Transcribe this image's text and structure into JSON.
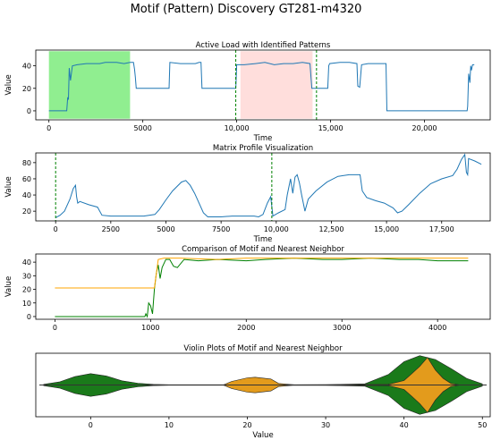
{
  "figure": {
    "suptitle": "Motif (Pattern) Discovery GT281-m4320"
  },
  "chart_data": [
    {
      "type": "line",
      "title": "Active Load with Identified Patterns",
      "xlabel": "Time",
      "ylabel": "Value",
      "xlim": [
        -700,
        23500
      ],
      "ylim": [
        -8,
        54
      ],
      "xticks": [
        0,
        5000,
        10000,
        15000,
        20000
      ],
      "xtick_labels": [
        "0",
        "5000",
        "10,000",
        "15,000",
        "20,000"
      ],
      "yticks": [
        0,
        20,
        40
      ],
      "ytick_labels": [
        "0",
        "20",
        "40"
      ],
      "colors": {
        "line": "#1f77b4",
        "motif_box": "#90ee90",
        "neighbor_box": "#ffdedc",
        "marker": "#008000"
      },
      "highlight_regions": [
        {
          "name": "motif",
          "x": [
            0,
            4320
          ],
          "y": [
            -7,
            53
          ]
        },
        {
          "name": "nearest-neighbor",
          "x": [
            10200,
            14040
          ],
          "y": [
            -7,
            53
          ]
        }
      ],
      "vlines": [
        9950,
        14250
      ],
      "series": [
        {
          "values": [
            [
              0,
              0
            ],
            [
              950,
              0
            ],
            [
              1000,
              12
            ],
            [
              1040,
              10
            ],
            [
              1080,
              38
            ],
            [
              1150,
              27
            ],
            [
              1250,
              40
            ],
            [
              1500,
              41
            ],
            [
              2000,
              42
            ],
            [
              2700,
              42
            ],
            [
              3000,
              43
            ],
            [
              3600,
              43
            ],
            [
              4000,
              42
            ],
            [
              4320,
              43
            ],
            [
              4500,
              43
            ],
            [
              4560,
              37
            ],
            [
              4600,
              30
            ],
            [
              4650,
              20
            ],
            [
              5500,
              20
            ],
            [
              6400,
              20
            ],
            [
              6440,
              43
            ],
            [
              7000,
              42
            ],
            [
              7800,
              42
            ],
            [
              8000,
              43
            ],
            [
              8100,
              43
            ],
            [
              8150,
              20
            ],
            [
              9000,
              20
            ],
            [
              9950,
              20
            ],
            [
              10000,
              41
            ],
            [
              10400,
              41
            ],
            [
              11000,
              42
            ],
            [
              11500,
              43
            ],
            [
              12000,
              41
            ],
            [
              12500,
              42
            ],
            [
              13000,
              42
            ],
            [
              13500,
              43
            ],
            [
              13900,
              42
            ],
            [
              14000,
              20
            ],
            [
              14850,
              20
            ],
            [
              14900,
              40
            ],
            [
              14950,
              42
            ],
            [
              15500,
              43
            ],
            [
              16000,
              43
            ],
            [
              16400,
              42
            ],
            [
              16450,
              22
            ],
            [
              16550,
              21
            ],
            [
              16650,
              41
            ],
            [
              17000,
              42
            ],
            [
              17500,
              42
            ],
            [
              17950,
              42
            ],
            [
              18000,
              0
            ],
            [
              18400,
              0
            ],
            [
              20000,
              0
            ],
            [
              22200,
              0
            ],
            [
              22270,
              0
            ],
            [
              22300,
              4
            ],
            [
              22350,
              33
            ],
            [
              22420,
              25
            ],
            [
              22460,
              40
            ],
            [
              22500,
              36
            ],
            [
              22560,
              41
            ],
            [
              22650,
              41
            ]
          ]
        }
      ]
    },
    {
      "type": "line",
      "title": "Matrix Profile Visualization",
      "xlabel": "Time",
      "ylabel": "Value",
      "xlim": [
        -900,
        19700
      ],
      "ylim": [
        8,
        92
      ],
      "xticks": [
        0,
        2500,
        5000,
        7500,
        10000,
        12500,
        15000,
        17500
      ],
      "xtick_labels": [
        "0",
        "2500",
        "5000",
        "7500",
        "10,000",
        "12,500",
        "15,000",
        "17,500"
      ],
      "yticks": [
        20,
        40,
        60,
        80
      ],
      "ytick_labels": [
        "20",
        "40",
        "60",
        "80"
      ],
      "colors": {
        "line": "#1f77b4",
        "marker": "#008000"
      },
      "vlines": [
        0,
        9800
      ],
      "series": [
        {
          "values": [
            [
              0,
              12
            ],
            [
              200,
              15
            ],
            [
              400,
              20
            ],
            [
              650,
              35
            ],
            [
              800,
              48
            ],
            [
              900,
              52
            ],
            [
              950,
              38
            ],
            [
              1000,
              30
            ],
            [
              1100,
              32
            ],
            [
              1500,
              28
            ],
            [
              1900,
              25
            ],
            [
              2100,
              15
            ],
            [
              2500,
              14
            ],
            [
              3000,
              14
            ],
            [
              3500,
              14
            ],
            [
              4000,
              14
            ],
            [
              4500,
              16
            ],
            [
              4700,
              22
            ],
            [
              5000,
              34
            ],
            [
              5300,
              45
            ],
            [
              5700,
              56
            ],
            [
              5900,
              58
            ],
            [
              6100,
              52
            ],
            [
              6300,
              42
            ],
            [
              6500,
              30
            ],
            [
              6700,
              18
            ],
            [
              6900,
              13
            ],
            [
              7500,
              13
            ],
            [
              8000,
              14
            ],
            [
              9000,
              14
            ],
            [
              9200,
              13
            ],
            [
              9400,
              16
            ],
            [
              9600,
              30
            ],
            [
              9750,
              38
            ],
            [
              9850,
              14
            ],
            [
              10100,
              18
            ],
            [
              10400,
              22
            ],
            [
              10500,
              40
            ],
            [
              10650,
              60
            ],
            [
              10750,
              42
            ],
            [
              10850,
              62
            ],
            [
              10950,
              65
            ],
            [
              11050,
              55
            ],
            [
              11150,
              40
            ],
            [
              11300,
              20
            ],
            [
              11450,
              35
            ],
            [
              11800,
              45
            ],
            [
              12300,
              56
            ],
            [
              12800,
              63
            ],
            [
              13300,
              65
            ],
            [
              13800,
              65
            ],
            [
              13900,
              45
            ],
            [
              14100,
              37
            ],
            [
              14500,
              33
            ],
            [
              14900,
              30
            ],
            [
              15300,
              24
            ],
            [
              15500,
              18
            ],
            [
              15700,
              20
            ],
            [
              16000,
              28
            ],
            [
              16500,
              42
            ],
            [
              17000,
              54
            ],
            [
              17500,
              60
            ],
            [
              18000,
              64
            ],
            [
              18200,
              72
            ],
            [
              18400,
              84
            ],
            [
              18550,
              90
            ],
            [
              18620,
              68
            ],
            [
              18680,
              65
            ],
            [
              18720,
              85
            ],
            [
              19000,
              82
            ],
            [
              19300,
              78
            ]
          ]
        }
      ]
    },
    {
      "type": "line",
      "title": "Comparison of Motif and Nearest Neighbor",
      "xlabel": "",
      "ylabel": "Value",
      "xlim": [
        -200,
        4550
      ],
      "ylim": [
        -2,
        46
      ],
      "xticks": [
        0,
        1000,
        2000,
        3000,
        4000
      ],
      "xtick_labels": [
        "0",
        "1000",
        "2000",
        "3000",
        "4000"
      ],
      "yticks": [
        0,
        10,
        20,
        30,
        40
      ],
      "ytick_labels": [
        "0",
        "10",
        "20",
        "30",
        "40"
      ],
      "series": [
        {
          "color": "#008000",
          "values": [
            [
              0,
              0
            ],
            [
              940,
              0
            ],
            [
              950,
              2
            ],
            [
              965,
              0
            ],
            [
              980,
              10
            ],
            [
              1000,
              8
            ],
            [
              1020,
              2
            ],
            [
              1040,
              20
            ],
            [
              1060,
              32
            ],
            [
              1080,
              38
            ],
            [
              1100,
              28
            ],
            [
              1120,
              36
            ],
            [
              1160,
              42
            ],
            [
              1200,
              42
            ],
            [
              1240,
              37
            ],
            [
              1280,
              36
            ],
            [
              1350,
              42
            ],
            [
              1500,
              41
            ],
            [
              1700,
              42
            ],
            [
              2000,
              41
            ],
            [
              2200,
              42
            ],
            [
              2500,
              43
            ],
            [
              2800,
              42
            ],
            [
              3000,
              42
            ],
            [
              3300,
              43
            ],
            [
              3600,
              42
            ],
            [
              3800,
              42
            ],
            [
              4000,
              41
            ],
            [
              4320,
              41
            ]
          ]
        },
        {
          "color": "#ffa500",
          "values": [
            [
              0,
              21
            ],
            [
              1040,
              21
            ],
            [
              1080,
              42
            ],
            [
              1140,
              43
            ],
            [
              1300,
              43
            ],
            [
              1700,
              42
            ],
            [
              2000,
              43
            ],
            [
              2500,
              43
            ],
            [
              3000,
              43
            ],
            [
              3500,
              43
            ],
            [
              4000,
              43
            ],
            [
              4320,
              43
            ]
          ]
        }
      ]
    },
    {
      "type": "violin",
      "title": "Violin Plots of Motif and Nearest Neighbor",
      "xlabel": "Value",
      "xlim": [
        -7,
        51
      ],
      "xticks": [
        0,
        10,
        20,
        30,
        40,
        50
      ],
      "xtick_labels": [
        "0",
        "10",
        "20",
        "30",
        "40",
        "50"
      ],
      "violins": [
        {
          "color": "#1a7a1a",
          "density": [
            [
              -6,
              0.02
            ],
            [
              -4,
              0.1
            ],
            [
              -2,
              0.28
            ],
            [
              0,
              0.38
            ],
            [
              2,
              0.3
            ],
            [
              4,
              0.14
            ],
            [
              6,
              0.06
            ],
            [
              8,
              0.02
            ],
            [
              10,
              0.01
            ],
            [
              20,
              0.008
            ],
            [
              30,
              0.008
            ],
            [
              35,
              0.04
            ],
            [
              38,
              0.35
            ],
            [
              40,
              0.78
            ],
            [
              42,
              0.98
            ],
            [
              44,
              0.85
            ],
            [
              46,
              0.55
            ],
            [
              48,
              0.22
            ],
            [
              50,
              0.04
            ]
          ]
        },
        {
          "color": "#e39b1c",
          "density": [
            [
              17,
              0.01
            ],
            [
              18,
              0.12
            ],
            [
              20,
              0.24
            ],
            [
              21,
              0.26
            ],
            [
              23,
              0.2
            ],
            [
              24,
              0.05
            ],
            [
              26,
              0.005
            ],
            [
              38,
              0.02
            ],
            [
              40,
              0.15
            ],
            [
              41,
              0.38
            ],
            [
              42,
              0.62
            ],
            [
              43,
              0.92
            ],
            [
              44,
              0.5
            ],
            [
              45,
              0.22
            ],
            [
              46,
              0.05
            ],
            [
              47,
              0.005
            ]
          ]
        }
      ]
    }
  ]
}
